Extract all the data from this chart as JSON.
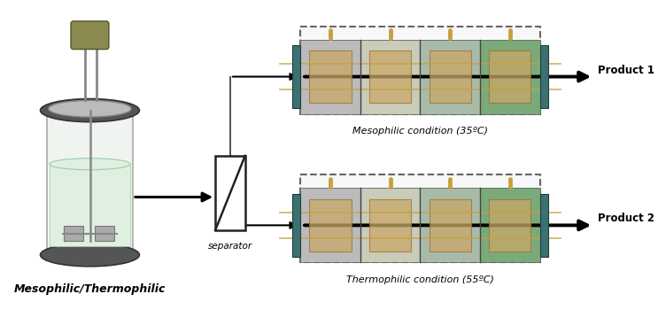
{
  "bg_color": "#ffffff",
  "bioreactor_label": "Mesophilic/Thermophilic",
  "separator_label": "separator",
  "reactor1_label": "Mesophilic condition (35ºC)",
  "reactor2_label": "Thermophilic condition (55ºC)",
  "product1_label": "Product 1",
  "product2_label": "Product 2",
  "chamber_colors": [
    "#bbbbbb",
    "#c8ccb8",
    "#a8bba8",
    "#7aaa7a"
  ],
  "tan_color": "#c8a868",
  "teal_color": "#3d7070",
  "rail_color": "#888888",
  "dashed_color": "#777777",
  "pin_color": "#c8a040",
  "arrow_color": "#000000",
  "motor_color": "#8a8a50",
  "dark_ring_color": "#555555",
  "lid_color": "#bbbbbb",
  "liquid_color": "#e0f0e0",
  "liquid_edge": "#99ccaa",
  "glass_color": "#f0f4f0",
  "impeller_color": "#aaaaaa"
}
